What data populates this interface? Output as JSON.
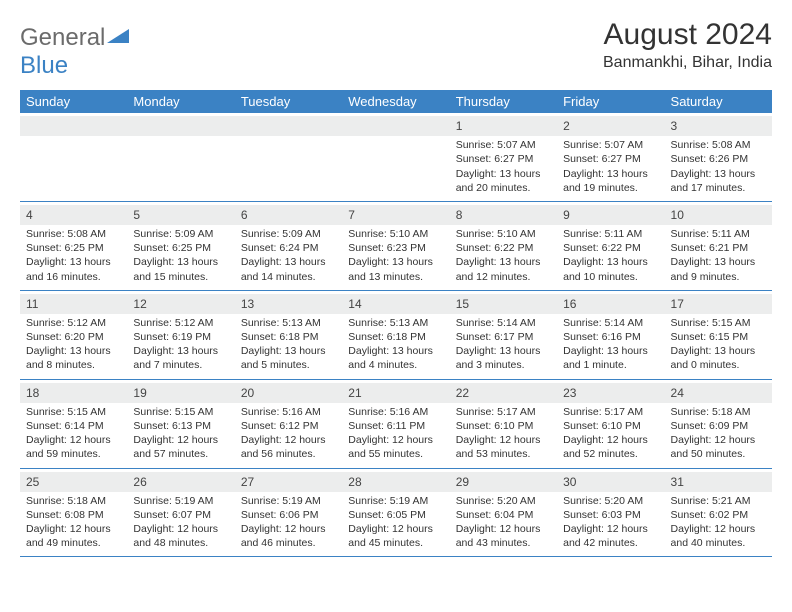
{
  "logo": {
    "text1": "General",
    "text2": "Blue"
  },
  "title": "August 2024",
  "location": "Banmankhi, Bihar, India",
  "header_bg": "#3b82c4",
  "dayname_bg": "#eceded",
  "days_of_week": [
    "Sunday",
    "Monday",
    "Tuesday",
    "Wednesday",
    "Thursday",
    "Friday",
    "Saturday"
  ],
  "weeks": [
    [
      {
        "n": "",
        "sr": "",
        "ss": "",
        "dl": ""
      },
      {
        "n": "",
        "sr": "",
        "ss": "",
        "dl": ""
      },
      {
        "n": "",
        "sr": "",
        "ss": "",
        "dl": ""
      },
      {
        "n": "",
        "sr": "",
        "ss": "",
        "dl": ""
      },
      {
        "n": "1",
        "sr": "5:07 AM",
        "ss": "6:27 PM",
        "dl": "13 hours and 20 minutes."
      },
      {
        "n": "2",
        "sr": "5:07 AM",
        "ss": "6:27 PM",
        "dl": "13 hours and 19 minutes."
      },
      {
        "n": "3",
        "sr": "5:08 AM",
        "ss": "6:26 PM",
        "dl": "13 hours and 17 minutes."
      }
    ],
    [
      {
        "n": "4",
        "sr": "5:08 AM",
        "ss": "6:25 PM",
        "dl": "13 hours and 16 minutes."
      },
      {
        "n": "5",
        "sr": "5:09 AM",
        "ss": "6:25 PM",
        "dl": "13 hours and 15 minutes."
      },
      {
        "n": "6",
        "sr": "5:09 AM",
        "ss": "6:24 PM",
        "dl": "13 hours and 14 minutes."
      },
      {
        "n": "7",
        "sr": "5:10 AM",
        "ss": "6:23 PM",
        "dl": "13 hours and 13 minutes."
      },
      {
        "n": "8",
        "sr": "5:10 AM",
        "ss": "6:22 PM",
        "dl": "13 hours and 12 minutes."
      },
      {
        "n": "9",
        "sr": "5:11 AM",
        "ss": "6:22 PM",
        "dl": "13 hours and 10 minutes."
      },
      {
        "n": "10",
        "sr": "5:11 AM",
        "ss": "6:21 PM",
        "dl": "13 hours and 9 minutes."
      }
    ],
    [
      {
        "n": "11",
        "sr": "5:12 AM",
        "ss": "6:20 PM",
        "dl": "13 hours and 8 minutes."
      },
      {
        "n": "12",
        "sr": "5:12 AM",
        "ss": "6:19 PM",
        "dl": "13 hours and 7 minutes."
      },
      {
        "n": "13",
        "sr": "5:13 AM",
        "ss": "6:18 PM",
        "dl": "13 hours and 5 minutes."
      },
      {
        "n": "14",
        "sr": "5:13 AM",
        "ss": "6:18 PM",
        "dl": "13 hours and 4 minutes."
      },
      {
        "n": "15",
        "sr": "5:14 AM",
        "ss": "6:17 PM",
        "dl": "13 hours and 3 minutes."
      },
      {
        "n": "16",
        "sr": "5:14 AM",
        "ss": "6:16 PM",
        "dl": "13 hours and 1 minute."
      },
      {
        "n": "17",
        "sr": "5:15 AM",
        "ss": "6:15 PM",
        "dl": "13 hours and 0 minutes."
      }
    ],
    [
      {
        "n": "18",
        "sr": "5:15 AM",
        "ss": "6:14 PM",
        "dl": "12 hours and 59 minutes."
      },
      {
        "n": "19",
        "sr": "5:15 AM",
        "ss": "6:13 PM",
        "dl": "12 hours and 57 minutes."
      },
      {
        "n": "20",
        "sr": "5:16 AM",
        "ss": "6:12 PM",
        "dl": "12 hours and 56 minutes."
      },
      {
        "n": "21",
        "sr": "5:16 AM",
        "ss": "6:11 PM",
        "dl": "12 hours and 55 minutes."
      },
      {
        "n": "22",
        "sr": "5:17 AM",
        "ss": "6:10 PM",
        "dl": "12 hours and 53 minutes."
      },
      {
        "n": "23",
        "sr": "5:17 AM",
        "ss": "6:10 PM",
        "dl": "12 hours and 52 minutes."
      },
      {
        "n": "24",
        "sr": "5:18 AM",
        "ss": "6:09 PM",
        "dl": "12 hours and 50 minutes."
      }
    ],
    [
      {
        "n": "25",
        "sr": "5:18 AM",
        "ss": "6:08 PM",
        "dl": "12 hours and 49 minutes."
      },
      {
        "n": "26",
        "sr": "5:19 AM",
        "ss": "6:07 PM",
        "dl": "12 hours and 48 minutes."
      },
      {
        "n": "27",
        "sr": "5:19 AM",
        "ss": "6:06 PM",
        "dl": "12 hours and 46 minutes."
      },
      {
        "n": "28",
        "sr": "5:19 AM",
        "ss": "6:05 PM",
        "dl": "12 hours and 45 minutes."
      },
      {
        "n": "29",
        "sr": "5:20 AM",
        "ss": "6:04 PM",
        "dl": "12 hours and 43 minutes."
      },
      {
        "n": "30",
        "sr": "5:20 AM",
        "ss": "6:03 PM",
        "dl": "12 hours and 42 minutes."
      },
      {
        "n": "31",
        "sr": "5:21 AM",
        "ss": "6:02 PM",
        "dl": "12 hours and 40 minutes."
      }
    ]
  ],
  "labels": {
    "sunrise": "Sunrise:",
    "sunset": "Sunset:",
    "daylight": "Daylight:"
  }
}
